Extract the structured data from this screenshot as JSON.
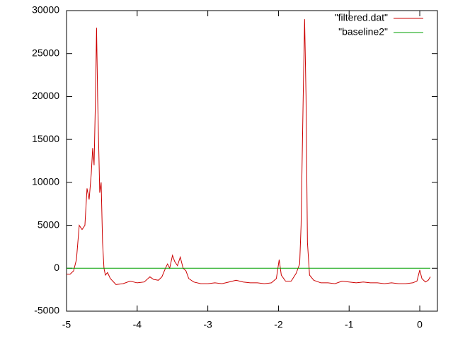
{
  "chart_data": {
    "type": "line",
    "xlim": [
      -5,
      0.25
    ],
    "ylim": [
      -5000,
      30000
    ],
    "xticks": [
      -5,
      -4,
      -3,
      -2,
      -1,
      0
    ],
    "yticks": [
      -5000,
      0,
      5000,
      10000,
      15000,
      20000,
      25000,
      30000
    ],
    "legend": "top-right",
    "series": [
      {
        "name": "\"filtered.dat\"",
        "color": "#cc0000",
        "x": [
          -5,
          -4.95,
          -4.9,
          -4.86,
          -4.82,
          -4.78,
          -4.74,
          -4.71,
          -4.68,
          -4.65,
          -4.63,
          -4.61,
          -4.59,
          -4.575,
          -4.56,
          -4.53,
          -4.51,
          -4.49,
          -4.47,
          -4.45,
          -4.42,
          -4.38,
          -4.3,
          -4.2,
          -4.1,
          -4.0,
          -3.9,
          -3.82,
          -3.77,
          -3.7,
          -3.65,
          -3.6,
          -3.57,
          -3.54,
          -3.5,
          -3.47,
          -3.43,
          -3.39,
          -3.35,
          -3.31,
          -3.27,
          -3.2,
          -3.1,
          -3.0,
          -2.9,
          -2.8,
          -2.7,
          -2.6,
          -2.5,
          -2.4,
          -2.3,
          -2.2,
          -2.1,
          -2.03,
          -1.99,
          -1.96,
          -1.9,
          -1.82,
          -1.75,
          -1.7,
          -1.68,
          -1.65,
          -1.63,
          -1.61,
          -1.59,
          -1.56,
          -1.5,
          -1.4,
          -1.3,
          -1.2,
          -1.1,
          -1.0,
          -0.9,
          -0.8,
          -0.7,
          -0.6,
          -0.5,
          -0.4,
          -0.3,
          -0.2,
          -0.1,
          -0.04,
          0.0,
          0.03,
          0.08,
          0.12,
          0.15
        ],
        "values": [
          -700,
          -700,
          -300,
          1000,
          5000,
          4500,
          5000,
          9300,
          8000,
          11000,
          14000,
          12000,
          20000,
          28000,
          20000,
          8800,
          10000,
          3000,
          0,
          -800,
          -500,
          -1200,
          -1900,
          -1800,
          -1500,
          -1700,
          -1600,
          -1000,
          -1300,
          -1400,
          -1000,
          0,
          500,
          0,
          1500,
          800,
          300,
          1300,
          0,
          -300,
          -1200,
          -1600,
          -1800,
          -1800,
          -1700,
          -1800,
          -1600,
          -1400,
          -1600,
          -1700,
          -1700,
          -1800,
          -1700,
          -1200,
          1000,
          -800,
          -1500,
          -1500,
          -600,
          500,
          5000,
          20000,
          29000,
          20000,
          3000,
          -800,
          -1400,
          -1700,
          -1700,
          -1800,
          -1500,
          -1600,
          -1700,
          -1600,
          -1700,
          -1700,
          -1800,
          -1700,
          -1800,
          -1800,
          -1700,
          -1500,
          -200,
          -1200,
          -1600,
          -1400,
          -1000
        ]
      },
      {
        "name": "\"baseline2\"",
        "color": "#00a000",
        "x": [
          -5,
          0.15
        ],
        "values": [
          0,
          0
        ]
      }
    ]
  }
}
